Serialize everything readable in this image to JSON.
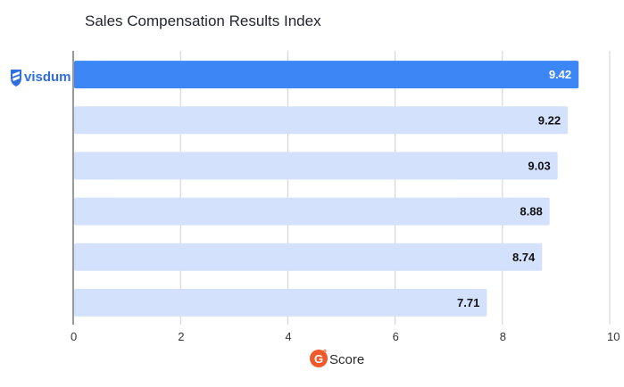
{
  "chart_data": {
    "type": "bar",
    "orientation": "horizontal",
    "title": "Sales Compensation Results Index",
    "categories_visible_labels": [
      "visdum",
      "",
      "",
      "",
      "",
      ""
    ],
    "values": [
      9.42,
      9.22,
      9.03,
      8.88,
      8.74,
      7.71
    ],
    "value_labels": [
      "9.42",
      "9.22",
      "9.03",
      "8.88",
      "8.74",
      "7.71"
    ],
    "highlight_index": 0,
    "xlim": [
      0,
      10
    ],
    "xticks": [
      0,
      2,
      4,
      6,
      8,
      10
    ],
    "xlabel": "Score",
    "xlabel_badge": "G2",
    "grid": "vertical",
    "colors": {
      "highlight": "#3d86f5",
      "bar": "#d4e1fd",
      "highlight_label": "#ffffff",
      "label": "#111111",
      "grid": "#d0d0d0",
      "axis": "#333333",
      "logo": "#2f6fe0",
      "g2": "#f0592a"
    }
  }
}
